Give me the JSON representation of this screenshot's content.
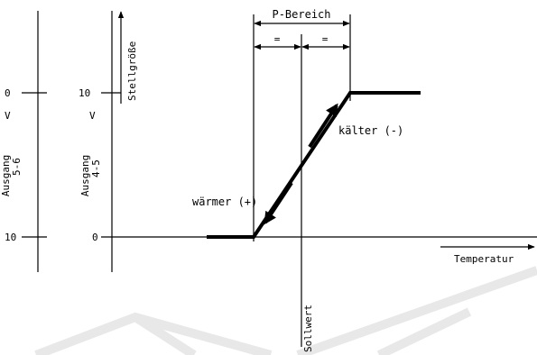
{
  "diagram": {
    "p_bereich": "P-Bereich",
    "half_marker": "=",
    "stellgroesse": "Stellgröße",
    "ausgang_56": {
      "line1": "Ausgang",
      "line2": "5-6"
    },
    "ausgang_45": {
      "line1": "Ausgang",
      "line2": "4-5"
    },
    "scale_56": {
      "top_value": "0",
      "top_unit": "V",
      "bottom_value": "10"
    },
    "scale_45": {
      "top_value": "10",
      "top_unit": "V",
      "bottom_value": "0"
    },
    "kaelter": "kälter (-)",
    "waermer": "wärmer (+)",
    "temperatur": "Temperatur",
    "sollwert": "Sollwert"
  },
  "colors": {
    "ink": "#000000",
    "background": "#ffffff",
    "watermark": "#e8e8e8"
  }
}
